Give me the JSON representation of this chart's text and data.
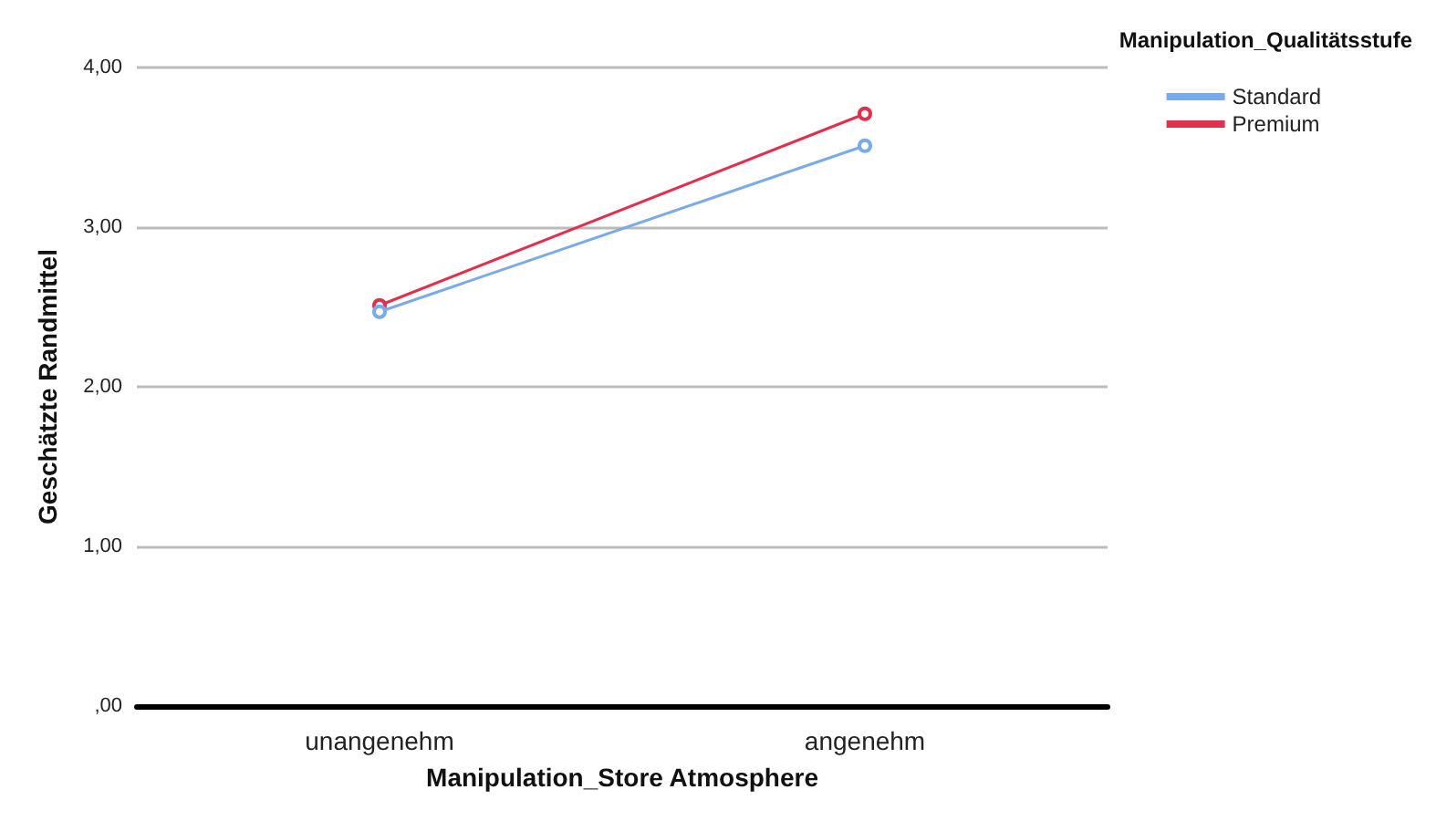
{
  "chart_data": {
    "type": "line",
    "xlabel": "Manipulation_Store Atmosphere",
    "ylabel": "Geschätzte Randmittel",
    "legend_title": "Manipulation_Qualitätsstufe",
    "categories": [
      "unangenehm",
      "angenehm"
    ],
    "series": [
      {
        "name": "Standard",
        "color": "#7aaae8",
        "values": [
          2.47,
          3.51
        ]
      },
      {
        "name": "Premium",
        "color": "#e0304e",
        "values": [
          2.51,
          3.71
        ]
      }
    ],
    "ylim": [
      0,
      4
    ],
    "yticks": [
      {
        "value": 0,
        "label": ",00"
      },
      {
        "value": 1,
        "label": "1,00"
      },
      {
        "value": 2,
        "label": "2,00"
      },
      {
        "value": 3,
        "label": "3,00"
      },
      {
        "value": 4,
        "label": "4,00"
      }
    ],
    "grid": "y",
    "legend": "top right",
    "marker": "circle",
    "line_style": "solid"
  }
}
